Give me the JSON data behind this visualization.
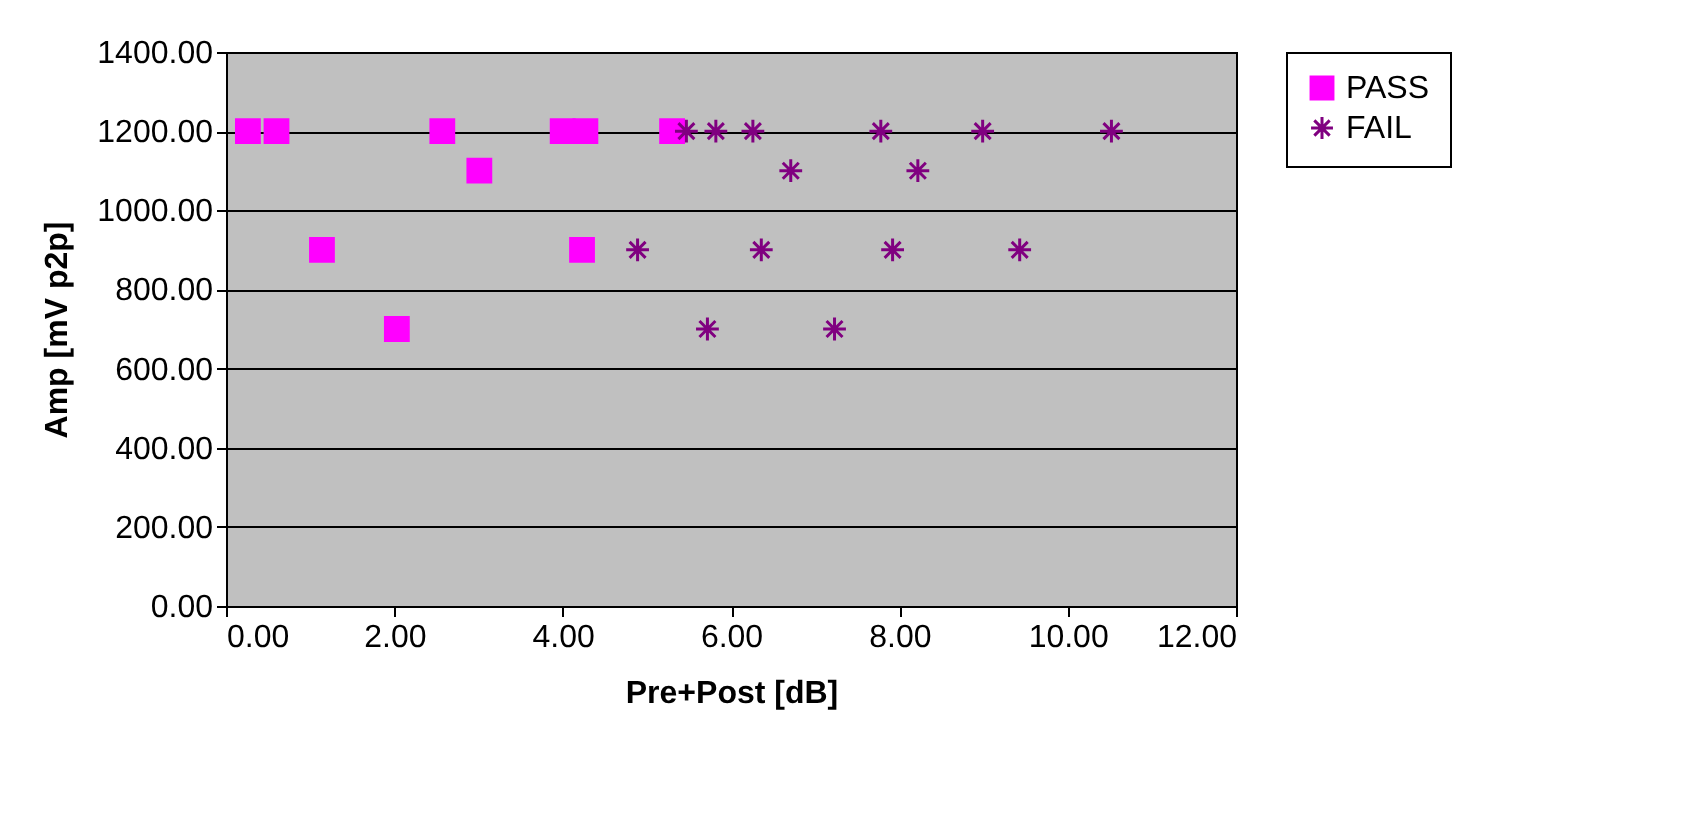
{
  "chart_data": {
    "type": "scatter",
    "xlabel": "Pre+Post [dB]",
    "ylabel": "Amp [mV p2p]",
    "xlim": [
      0,
      12
    ],
    "ylim": [
      0,
      1400
    ],
    "xticks": [
      {
        "value": 0,
        "label": "0.00"
      },
      {
        "value": 2,
        "label": "2.00"
      },
      {
        "value": 4,
        "label": "4.00"
      },
      {
        "value": 6,
        "label": "6.00"
      },
      {
        "value": 8,
        "label": "8.00"
      },
      {
        "value": 10,
        "label": "10.00"
      },
      {
        "value": 12,
        "label": "12.00"
      }
    ],
    "yticks": [
      {
        "value": 0,
        "label": "0.00"
      },
      {
        "value": 200,
        "label": "200.00"
      },
      {
        "value": 400,
        "label": "400.00"
      },
      {
        "value": 600,
        "label": "600.00"
      },
      {
        "value": 800,
        "label": "800.00"
      },
      {
        "value": 1000,
        "label": "1000.00"
      },
      {
        "value": 1200,
        "label": "1200.00"
      },
      {
        "value": 1400,
        "label": "1400.00"
      }
    ],
    "grid": "y",
    "legend": "right",
    "series": [
      {
        "name": "PASS",
        "color": "#ff00ff",
        "marker": "square",
        "x": [
          0.26,
          0.6,
          1.14,
          2.03,
          2.57,
          3.01,
          4.0,
          4.27,
          4.23,
          5.3
        ],
        "values": [
          1200,
          1200,
          900,
          700,
          1200,
          1100,
          1200,
          1200,
          900,
          1200
        ]
      },
      {
        "name": "FAIL",
        "color": "#800080",
        "marker": "cross",
        "x": [
          5.47,
          5.82,
          4.89,
          5.72,
          6.26,
          6.71,
          6.36,
          7.78,
          8.22,
          7.92,
          7.23,
          8.99,
          9.43,
          10.52
        ],
        "values": [
          1200,
          1200,
          900,
          700,
          1200,
          1100,
          900,
          1200,
          1100,
          900,
          700,
          1200,
          900,
          1200
        ]
      }
    ]
  }
}
